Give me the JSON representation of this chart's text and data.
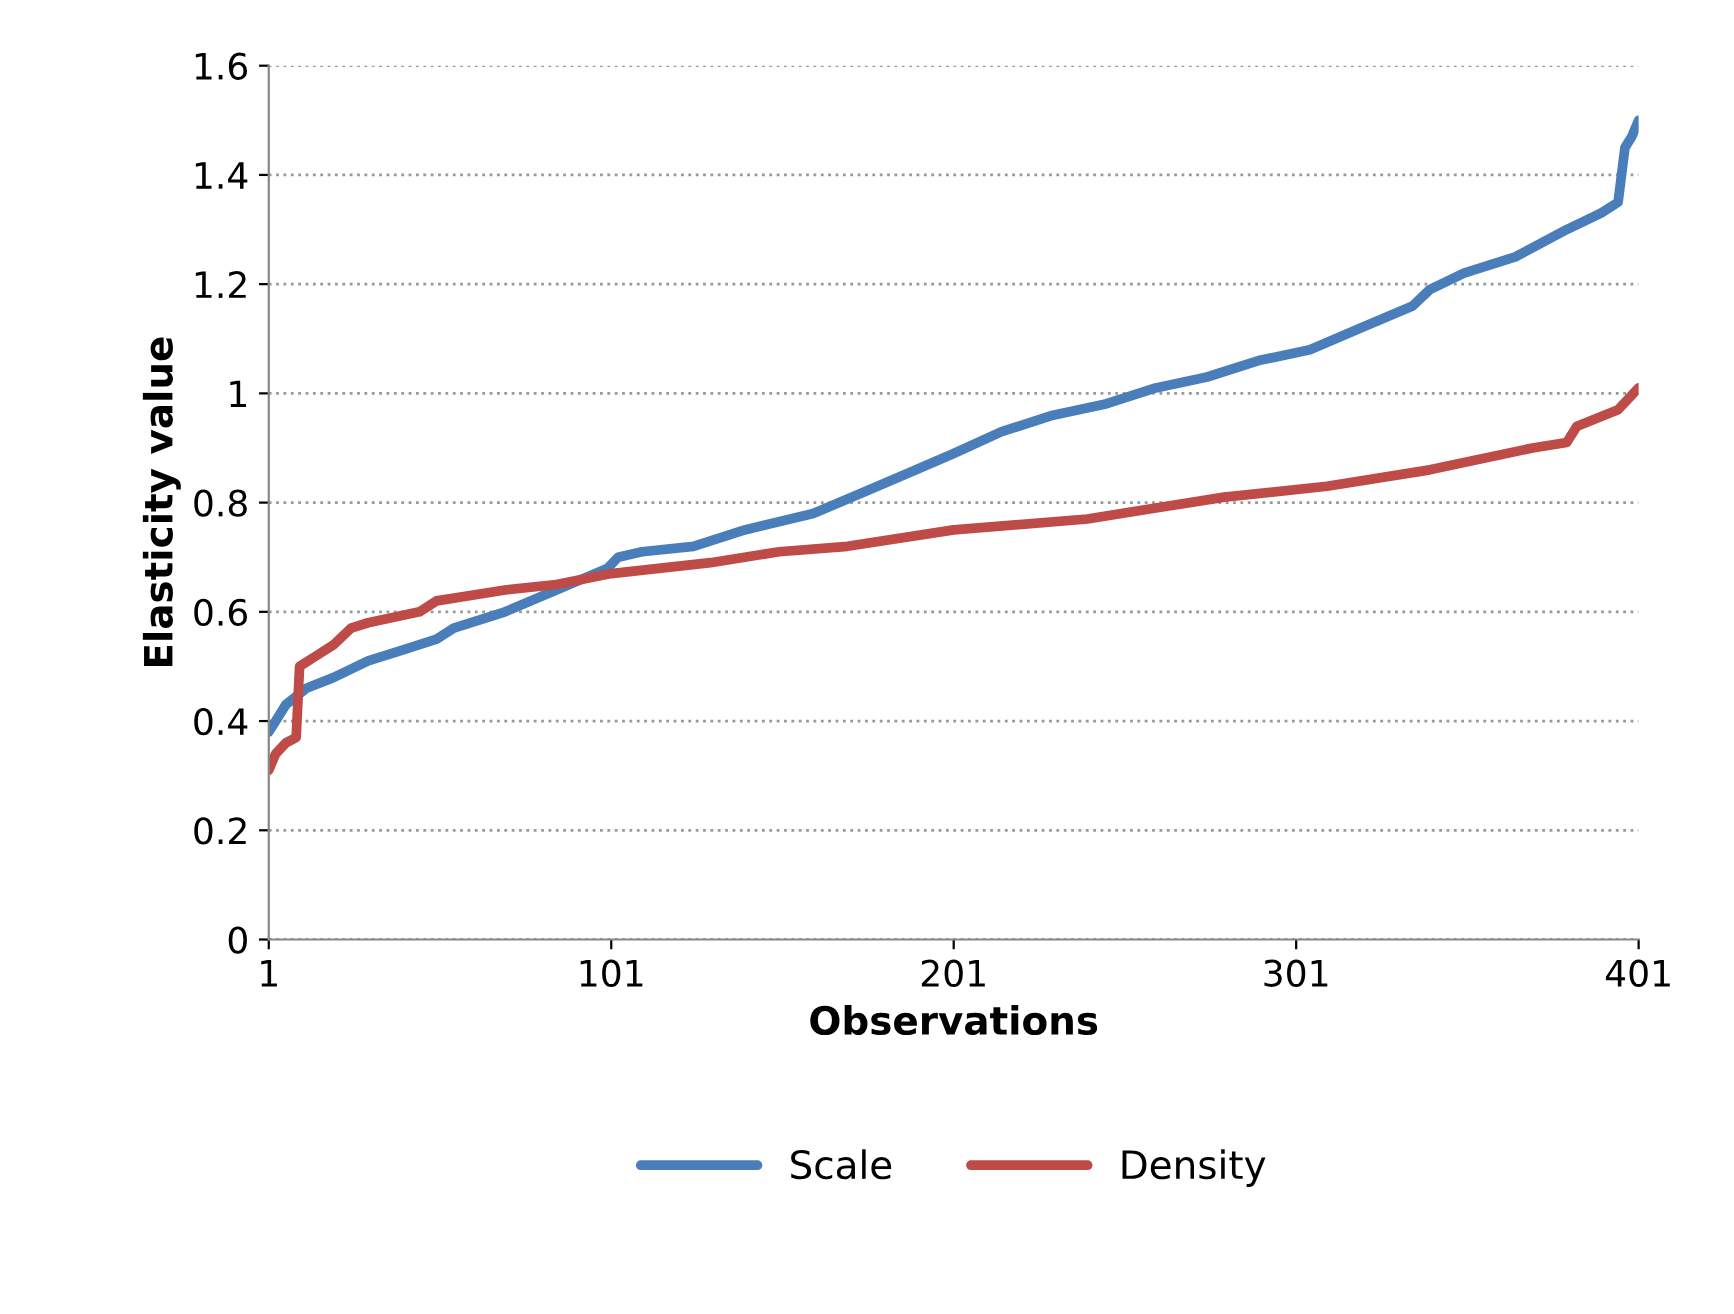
{
  "chart_data": {
    "type": "line",
    "xlabel": "Observations",
    "ylabel": "Elasticity value",
    "xlim": [
      1,
      401
    ],
    "xticks": [
      1,
      101,
      201,
      301,
      401
    ],
    "ylim": [
      0,
      1.6
    ],
    "yticks": [
      0,
      0.2,
      0.4,
      0.6,
      0.8,
      1,
      1.2,
      1.4,
      1.6
    ],
    "grid": "y",
    "legend": "bottom",
    "marker": "none",
    "line_style": "solid",
    "series": [
      {
        "name": "Scale",
        "color": "#4a7ebb",
        "x": [
          1,
          3,
          6,
          12,
          20,
          30,
          40,
          50,
          55,
          70,
          85,
          100,
          103,
          110,
          125,
          140,
          160,
          175,
          190,
          201,
          215,
          230,
          245,
          260,
          275,
          290,
          305,
          320,
          335,
          340,
          350,
          365,
          380,
          390,
          395,
          397,
          399,
          401
        ],
        "values": [
          0.38,
          0.4,
          0.43,
          0.46,
          0.48,
          0.51,
          0.53,
          0.55,
          0.57,
          0.6,
          0.64,
          0.68,
          0.7,
          0.71,
          0.72,
          0.75,
          0.78,
          0.82,
          0.86,
          0.89,
          0.93,
          0.96,
          0.98,
          1.01,
          1.03,
          1.06,
          1.08,
          1.12,
          1.16,
          1.19,
          1.22,
          1.25,
          1.3,
          1.33,
          1.35,
          1.45,
          1.47,
          1.5
        ]
      },
      {
        "name": "Density",
        "color": "#be4b48",
        "x": [
          1,
          3,
          6,
          9,
          10,
          15,
          20,
          25,
          30,
          45,
          50,
          70,
          85,
          101,
          130,
          150,
          170,
          201,
          240,
          260,
          280,
          310,
          340,
          370,
          380,
          383,
          395,
          401
        ],
        "values": [
          0.31,
          0.34,
          0.36,
          0.37,
          0.5,
          0.52,
          0.54,
          0.57,
          0.58,
          0.6,
          0.62,
          0.64,
          0.65,
          0.67,
          0.69,
          0.71,
          0.72,
          0.75,
          0.77,
          0.79,
          0.81,
          0.83,
          0.86,
          0.9,
          0.91,
          0.94,
          0.97,
          1.01
        ]
      }
    ]
  }
}
